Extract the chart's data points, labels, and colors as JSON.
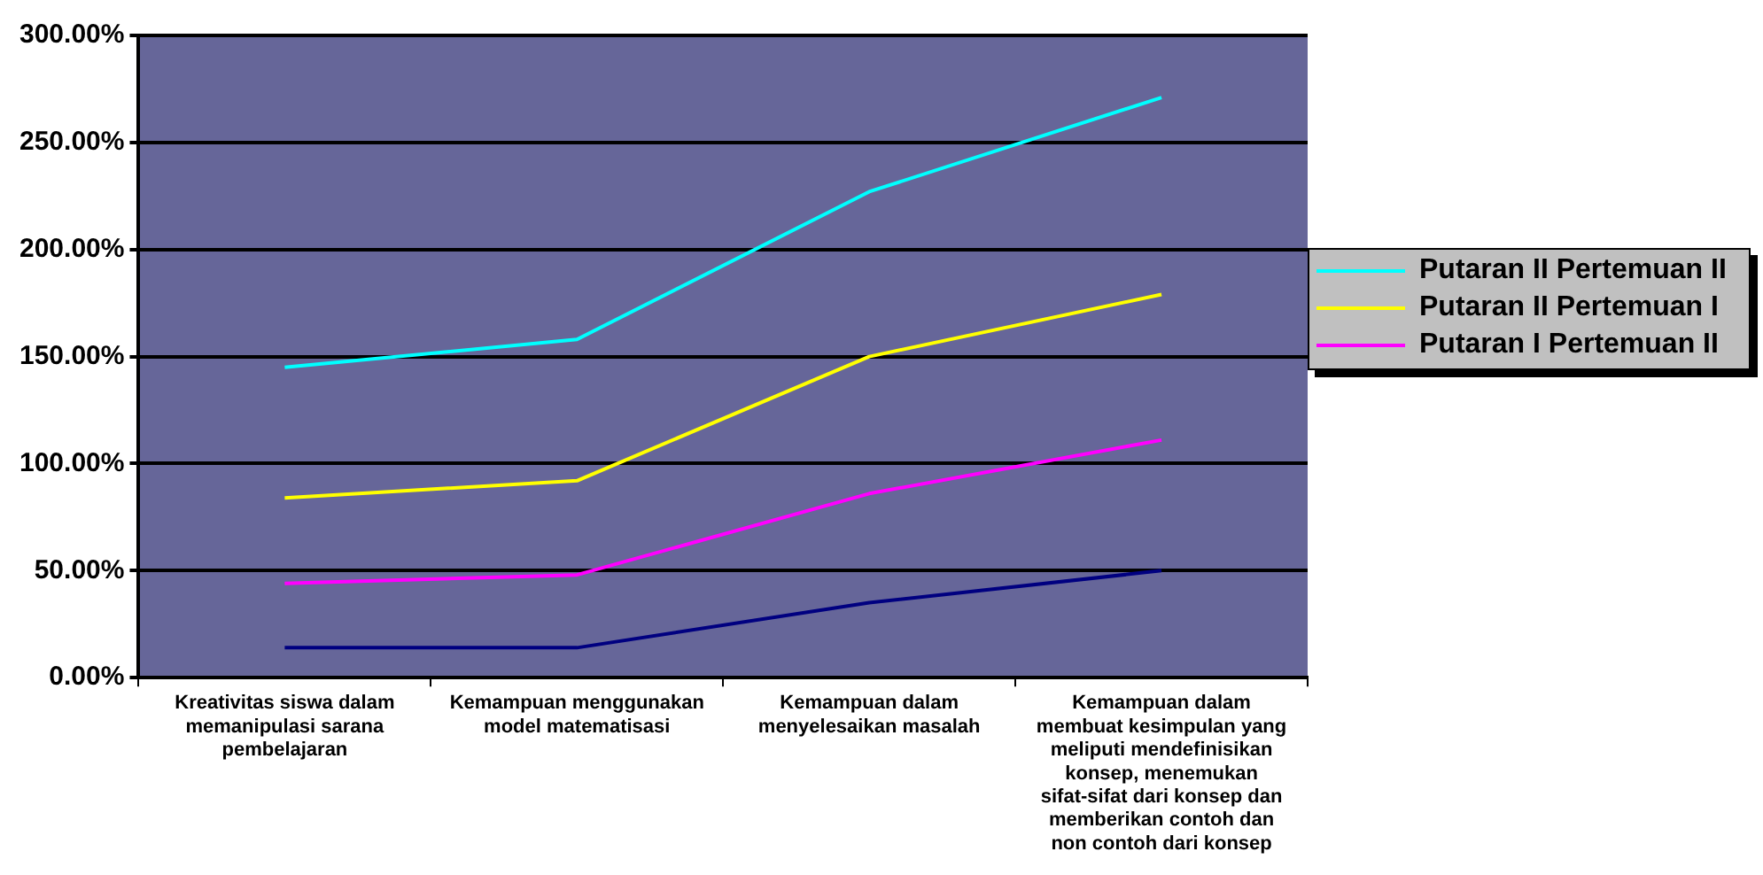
{
  "chart_data": {
    "type": "line",
    "categories": [
      "Kreativitas siswa dalam memanipulasi sarana pembelajaran",
      "Kemampuan menggunakan model matematisasi",
      "Kemampuan dalam menyelesaikan masalah",
      "Kemampuan dalam membuat kesimpulan yang meliputi mendefinisikan konsep, menemukan sifat-sifat dari konsep dan memberikan contoh dan non contoh dari konsep"
    ],
    "series": [
      {
        "name": "Putaran II Pertemuan II",
        "color": "#00ffff",
        "values": [
          145,
          158,
          227,
          271
        ]
      },
      {
        "name": "Putaran II Pertemuan I",
        "color": "#ffff00",
        "values": [
          84,
          92,
          150,
          179
        ]
      },
      {
        "name": "Putaran I Pertemuan II",
        "color": "#ff00ff",
        "values": [
          44,
          48,
          86,
          111
        ]
      },
      {
        "color": "#000080",
        "values": [
          14,
          14,
          35,
          50
        ]
      }
    ],
    "ylim": [
      0,
      300
    ],
    "yticks": [
      {
        "value": 0,
        "label": "0.00%"
      },
      {
        "value": 50,
        "label": "50.00%"
      },
      {
        "value": 100,
        "label": "100.00%"
      },
      {
        "value": 150,
        "label": "150.00%"
      },
      {
        "value": 200,
        "label": "200.00%"
      },
      {
        "value": 250,
        "label": "250.00%"
      },
      {
        "value": 300,
        "label": "300.00%"
      }
    ],
    "grid": "y",
    "legend": "right",
    "marker": "none"
  }
}
